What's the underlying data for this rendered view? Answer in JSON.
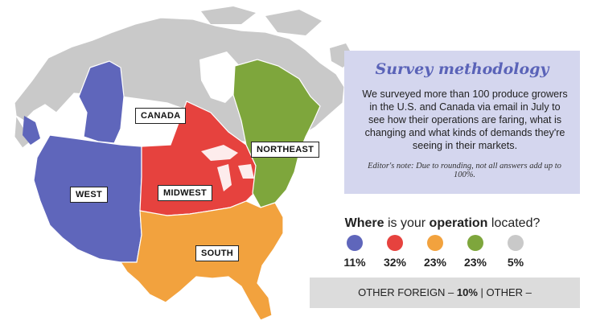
{
  "map": {
    "regions": [
      {
        "name": "CANADA",
        "color": "#c9c9c9"
      },
      {
        "name": "WEST",
        "color": "#5f66bb"
      },
      {
        "name": "MIDWEST",
        "color": "#e6423e"
      },
      {
        "name": "NORTHEAST",
        "color": "#7ea63c"
      },
      {
        "name": "SOUTH",
        "color": "#f2a23e"
      }
    ],
    "water_color": "#ffffff"
  },
  "methodology": {
    "title": "Survey methodology",
    "body": "We surveyed more than 100 produce growers in the U.S. and Canada via email in July to see how their operations are faring, what is  changing and what kinds of demands they're seeing in their markets.",
    "note": "Editor's note: Due to rounding, not all answers add up to 100%."
  },
  "legend": {
    "title_pre": "Where",
    "title_mid": " is your ",
    "title_bold": "operation",
    "title_post": " located?",
    "items": [
      {
        "color": "#5f66bb",
        "value": "11%"
      },
      {
        "color": "#e6423e",
        "value": "32%"
      },
      {
        "color": "#f2a23e",
        "value": "23%"
      },
      {
        "color": "#7ea63c",
        "value": "23%"
      },
      {
        "color": "#c9c9c9",
        "value": "5%"
      }
    ]
  },
  "other": {
    "label": "OTHER FOREIGN – ",
    "value": "10%",
    "sep": " | OTHER –"
  }
}
